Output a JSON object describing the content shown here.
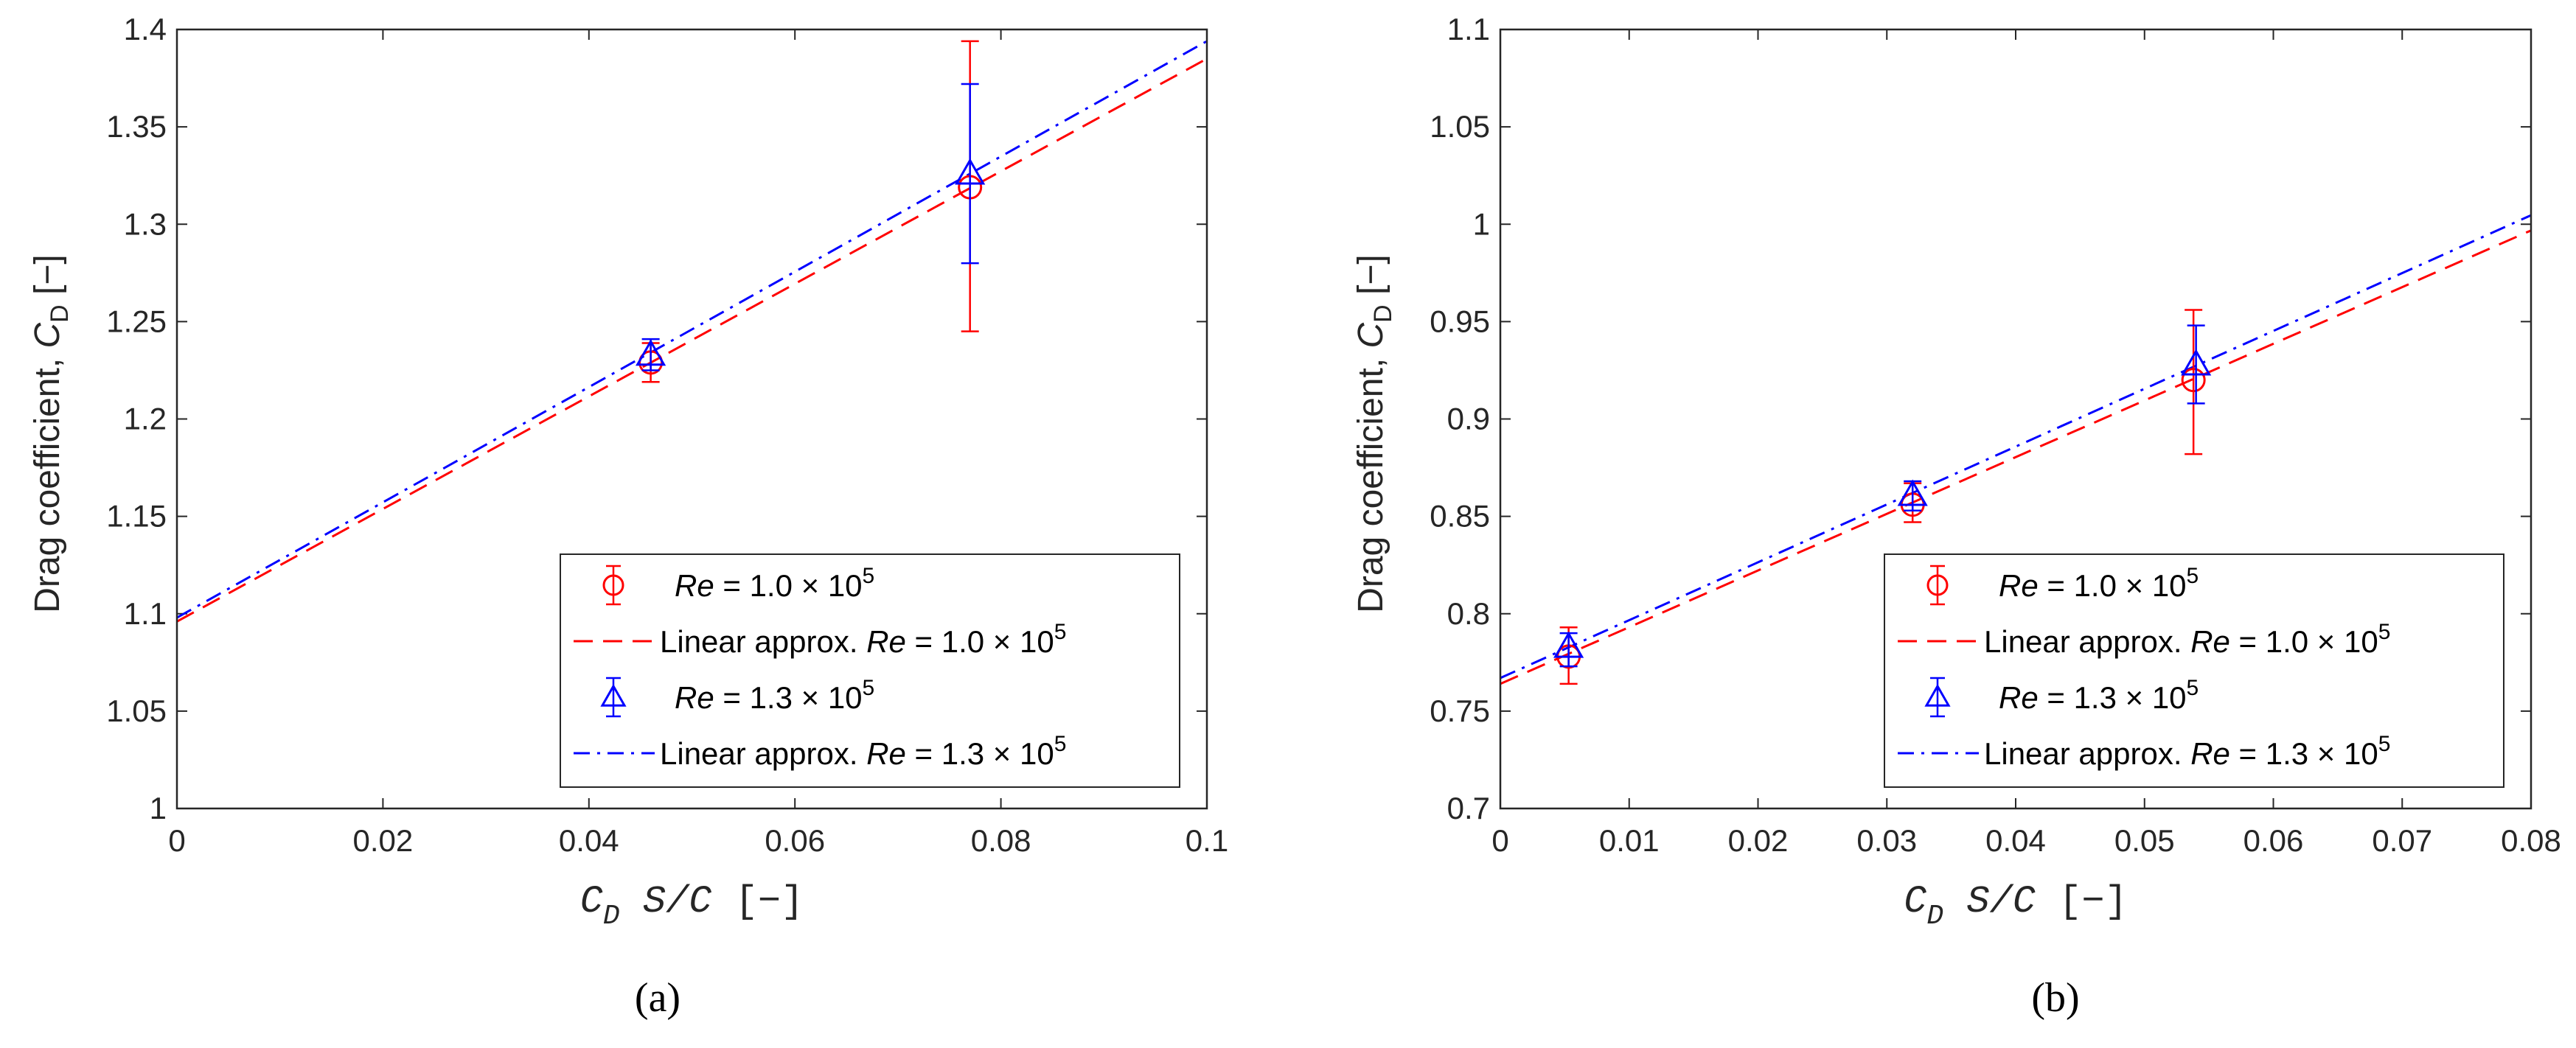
{
  "chart_data": [
    {
      "panel_label": "(a)",
      "type": "scatter",
      "ylabel": {
        "text": "Drag coefficient,",
        "symbol": "C",
        "sub": "D",
        "unit": "[−]"
      },
      "xlabel": {
        "symbol": "C",
        "sub": "D",
        "rest": "S/C",
        "unit": "[−]"
      },
      "xlim": [
        0,
        0.1
      ],
      "ylim": [
        1.0,
        1.4
      ],
      "xticks": [
        0,
        0.02,
        0.04,
        0.06,
        0.08,
        0.1
      ],
      "xtick_labels": [
        "0",
        "0.02",
        "0.04",
        "0.06",
        "0.08",
        "0.1"
      ],
      "yticks": [
        1.0,
        1.05,
        1.1,
        1.15,
        1.2,
        1.25,
        1.3,
        1.35,
        1.4
      ],
      "ytick_labels": [
        "1",
        "1.05",
        "1.1",
        "1.15",
        "1.2",
        "1.25",
        "1.3",
        "1.35",
        "1.4"
      ],
      "series": [
        {
          "name": "Re = 1.0 × 10^5",
          "marker": "circle",
          "color": "#ff0000",
          "x": [
            0.046,
            0.077
          ],
          "y": [
            1.229,
            1.319
          ],
          "err_low": [
            1.219,
            1.245
          ],
          "err_high": [
            1.239,
            1.394
          ]
        },
        {
          "name": "Re = 1.3 × 10^5",
          "marker": "triangle",
          "color": "#0000ff",
          "x": [
            0.046,
            0.077
          ],
          "y": [
            1.233,
            1.326
          ],
          "err_low": [
            1.225,
            1.28
          ],
          "err_high": [
            1.241,
            1.372
          ]
        }
      ],
      "fits": [
        {
          "name": "Linear approx. Re = 1.0 × 10^5",
          "color": "#ff0000",
          "dash": "dashed",
          "intercept": 1.096,
          "slope": 2.89
        },
        {
          "name": "Linear approx. Re = 1.3 × 10^5",
          "color": "#0000ff",
          "dash": "dashdot",
          "intercept": 1.098,
          "slope": 2.96
        }
      ],
      "legend": {
        "placement": "bottom-right",
        "entries": [
          {
            "kind": "marker",
            "series": 0,
            "prefix": "Re",
            "text": " = 1.0 × 10",
            "sup": "5"
          },
          {
            "kind": "line",
            "series": 0,
            "prefix": "Linear approx. ",
            "italic": "Re",
            "text": " = 1.0 × 10",
            "sup": "5"
          },
          {
            "kind": "marker",
            "series": 1,
            "prefix": "Re",
            "text": " = 1.3 × 10",
            "sup": "5"
          },
          {
            "kind": "line",
            "series": 1,
            "prefix": "Linear approx. ",
            "italic": "Re",
            "text": " = 1.3 × 10",
            "sup": "5"
          }
        ]
      }
    },
    {
      "panel_label": "(b)",
      "type": "scatter",
      "ylabel": {
        "text": "Drag coefficient,",
        "symbol": "C",
        "sub": "D",
        "unit": "[−]"
      },
      "xlabel": {
        "symbol": "C",
        "sub": "D",
        "rest": "S/C",
        "unit": "[−]"
      },
      "xlim": [
        0,
        0.08
      ],
      "ylim": [
        0.7,
        1.1
      ],
      "xticks": [
        0,
        0.01,
        0.02,
        0.03,
        0.04,
        0.05,
        0.06,
        0.07,
        0.08
      ],
      "xtick_labels": [
        "0",
        "0.01",
        "0.02",
        "0.03",
        "0.04",
        "0.05",
        "0.06",
        "0.07",
        "0.08"
      ],
      "yticks": [
        0.7,
        0.75,
        0.8,
        0.85,
        0.9,
        0.95,
        1.0,
        1.05,
        1.1
      ],
      "ytick_labels": [
        "0.7",
        "0.75",
        "0.8",
        "0.85",
        "0.9",
        "0.95",
        "1",
        "1.05",
        "1.1"
      ],
      "series": [
        {
          "name": "Re = 1.0 × 10^5",
          "marker": "circle",
          "color": "#ff0000",
          "x": [
            0.0053,
            0.032,
            0.0538
          ],
          "y": [
            0.778,
            0.856,
            0.92
          ],
          "err_low": [
            0.764,
            0.847,
            0.882
          ],
          "err_high": [
            0.793,
            0.867,
            0.956
          ]
        },
        {
          "name": "Re = 1.3 × 10^5",
          "marker": "triangle",
          "color": "#0000ff",
          "x": [
            0.0053,
            0.032,
            0.054
          ],
          "y": [
            0.783,
            0.861,
            0.928
          ],
          "err_low": [
            0.773,
            0.853,
            0.908
          ],
          "err_high": [
            0.79,
            0.868,
            0.948
          ]
        }
      ],
      "fits": [
        {
          "name": "Linear approx. Re = 1.0 × 10^5",
          "color": "#ff0000",
          "dash": "dashed",
          "intercept": 0.764,
          "slope": 2.91
        },
        {
          "name": "Linear approx. Re = 1.3 × 10^5",
          "color": "#0000ff",
          "dash": "dashdot",
          "intercept": 0.767,
          "slope": 2.97
        }
      ],
      "legend": {
        "placement": "bottom-right",
        "entries": [
          {
            "kind": "marker",
            "series": 0,
            "prefix": "Re",
            "text": " = 1.0 × 10",
            "sup": "5"
          },
          {
            "kind": "line",
            "series": 0,
            "prefix": "Linear approx. ",
            "italic": "Re",
            "text": " = 1.0 × 10",
            "sup": "5"
          },
          {
            "kind": "marker",
            "series": 1,
            "prefix": "Re",
            "text": " = 1.3 × 10",
            "sup": "5"
          },
          {
            "kind": "line",
            "series": 1,
            "prefix": "Linear approx. ",
            "italic": "Re",
            "text": " = 1.3 × 10",
            "sup": "5"
          }
        ]
      }
    }
  ]
}
